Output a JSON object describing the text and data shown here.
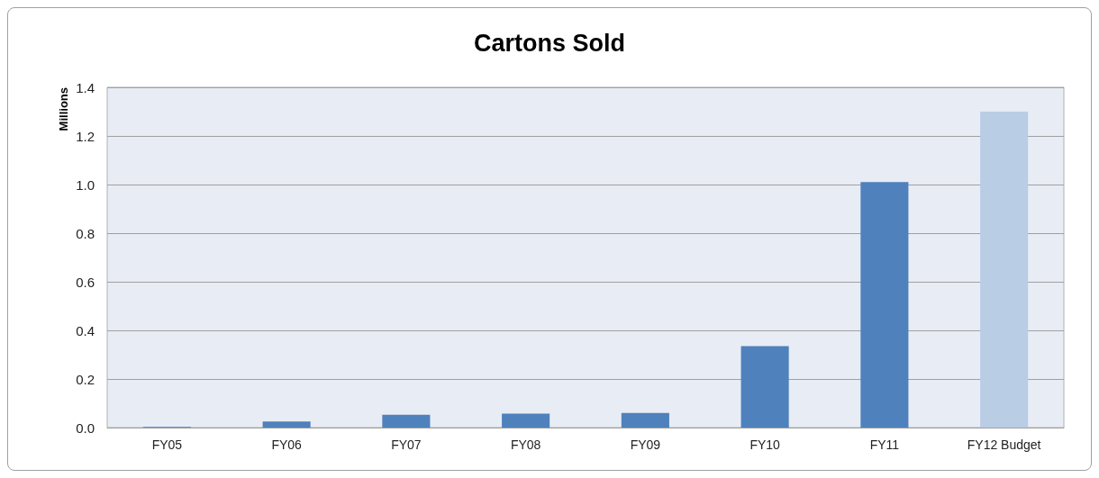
{
  "chart_data": {
    "type": "bar",
    "title": "Cartons Sold",
    "ylabel": "Millions",
    "categories": [
      "FY05",
      "FY06",
      "FY07",
      "FY08",
      "FY09",
      "FY10",
      "FY11",
      "FY12 Budget"
    ],
    "values": [
      0.003,
      0.025,
      0.053,
      0.057,
      0.06,
      0.335,
      1.01,
      1.3
    ],
    "colors": [
      "#4f81bd",
      "#4f81bd",
      "#4f81bd",
      "#4f81bd",
      "#4f81bd",
      "#4f81bd",
      "#4f81bd",
      "#b9cde5"
    ],
    "ylim": [
      0,
      1.4
    ],
    "yticks": [
      {
        "value": 0,
        "label": "0.0"
      },
      {
        "value": 0.2,
        "label": "0.2"
      },
      {
        "value": 0.4,
        "label": "0.4"
      },
      {
        "value": 0.6,
        "label": "0.6"
      },
      {
        "value": 0.8,
        "label": "0.8"
      },
      {
        "value": 1,
        "label": "1.0"
      },
      {
        "value": 1.2,
        "label": "1.2"
      },
      {
        "value": 1.4,
        "label": "1.4"
      }
    ],
    "grid": "y"
  }
}
